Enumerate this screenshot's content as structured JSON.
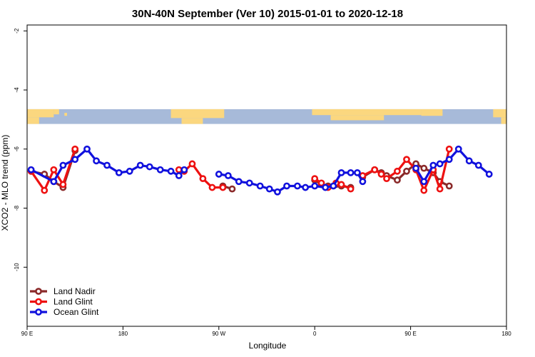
{
  "chart_data": {
    "type": "line",
    "title": "30N-40N September (Ver 10)   2015-01-01 to 2020-12-18",
    "xlabel": "Longitude",
    "ylabel": "XCO2 - MLO trend (ppm)",
    "xlim": [
      0,
      360
    ],
    "ylim": [
      -12,
      -1.8
    ],
    "x_ticks": [
      {
        "value": 0,
        "label": "90 E"
      },
      {
        "value": 72,
        "label": "180"
      },
      {
        "value": 144,
        "label": "90 W"
      },
      {
        "value": 216,
        "label": "0"
      },
      {
        "value": 288,
        "label": "90 E"
      },
      {
        "value": 360,
        "label": "180"
      }
    ],
    "y_ticks": [
      {
        "value": -2,
        "label": "-2"
      },
      {
        "value": -4,
        "label": "-4"
      },
      {
        "value": -6,
        "label": "-6"
      },
      {
        "value": -8,
        "label": "-8"
      },
      {
        "value": -10,
        "label": "-10"
      }
    ],
    "grid": false,
    "legend_position": "bottom-left",
    "map_band": {
      "y_top": -4.65,
      "y_bottom": -5.15,
      "ocean_color": "#a7bad9",
      "land_color": "#fbd77f"
    },
    "series": [
      {
        "name": "Land Nadir",
        "color": "#8b2a2a",
        "segments": [
          [
            [
              3,
              -6.75
            ],
            [
              13,
              -6.85
            ],
            [
              20,
              -7.1
            ],
            [
              27,
              -7.3
            ],
            [
              36,
              -6.05
            ]
          ],
          [
            [
              147,
              -7.25
            ],
            [
              154,
              -7.35
            ]
          ],
          [
            [
              216,
              -7.05
            ],
            [
              221,
              -7.2
            ],
            [
              226,
              -7.25
            ],
            [
              232,
              -7.2
            ],
            [
              236,
              -7.25
            ],
            [
              243,
              -7.3
            ]
          ],
          [
            [
              252,
              -6.95
            ],
            [
              261,
              -6.7
            ],
            [
              266,
              -6.8
            ],
            [
              270,
              -6.9
            ],
            [
              278,
              -7.05
            ],
            [
              285,
              -6.75
            ],
            [
              292,
              -6.5
            ],
            [
              298,
              -6.65
            ],
            [
              305,
              -6.8
            ],
            [
              310,
              -7.1
            ],
            [
              317,
              -7.25
            ]
          ]
        ]
      },
      {
        "name": "Land Glint",
        "color": "#ee1111",
        "segments": [
          [
            [
              3,
              -6.75
            ],
            [
              13,
              -7.4
            ],
            [
              20,
              -6.7
            ],
            [
              27,
              -7.2
            ],
            [
              36,
              -6.0
            ]
          ],
          [
            [
              114,
              -6.7
            ],
            [
              118,
              -6.75
            ],
            [
              124,
              -6.5
            ],
            [
              132,
              -7.0
            ],
            [
              139,
              -7.3
            ],
            [
              147,
              -7.3
            ]
          ],
          [
            [
              216,
              -7.0
            ],
            [
              221,
              -7.15
            ],
            [
              226,
              -7.3
            ],
            [
              232,
              -7.15
            ],
            [
              236,
              -7.2
            ],
            [
              243,
              -7.35
            ]
          ],
          [
            [
              252,
              -6.9
            ],
            [
              261,
              -6.7
            ],
            [
              266,
              -6.85
            ],
            [
              270,
              -7.0
            ],
            [
              278,
              -6.75
            ],
            [
              285,
              -6.35
            ],
            [
              292,
              -6.7
            ],
            [
              298,
              -7.4
            ],
            [
              305,
              -6.7
            ],
            [
              310,
              -7.35
            ],
            [
              317,
              -6.0
            ]
          ]
        ]
      },
      {
        "name": "Ocean Glint",
        "color": "#1111dd",
        "segments": [
          [
            [
              3,
              -6.7
            ],
            [
              20,
              -7.1
            ],
            [
              27,
              -6.55
            ],
            [
              36,
              -6.35
            ],
            [
              45,
              -6.0
            ],
            [
              52,
              -6.4
            ],
            [
              60,
              -6.55
            ],
            [
              69,
              -6.8
            ],
            [
              77,
              -6.75
            ],
            [
              85,
              -6.55
            ],
            [
              92,
              -6.6
            ],
            [
              100,
              -6.7
            ],
            [
              108,
              -6.75
            ],
            [
              114,
              -6.9
            ],
            [
              118,
              -6.7
            ]
          ],
          [
            [
              144,
              -6.85
            ],
            [
              151,
              -6.9
            ],
            [
              159,
              -7.1
            ],
            [
              167,
              -7.15
            ],
            [
              175,
              -7.25
            ],
            [
              182,
              -7.35
            ],
            [
              188,
              -7.45
            ],
            [
              195,
              -7.25
            ],
            [
              203,
              -7.25
            ],
            [
              209,
              -7.3
            ],
            [
              216,
              -7.25
            ],
            [
              224,
              -7.3
            ],
            [
              230,
              -7.25
            ],
            [
              236,
              -6.8
            ],
            [
              243,
              -6.8
            ],
            [
              248,
              -6.8
            ],
            [
              252,
              -7.1
            ]
          ],
          [
            [
              292,
              -6.65
            ],
            [
              298,
              -7.1
            ],
            [
              305,
              -6.55
            ],
            [
              310,
              -6.5
            ],
            [
              317,
              -6.35
            ],
            [
              324,
              -6.0
            ],
            [
              332,
              -6.4
            ],
            [
              339,
              -6.55
            ],
            [
              347,
              -6.85
            ]
          ]
        ]
      }
    ]
  }
}
